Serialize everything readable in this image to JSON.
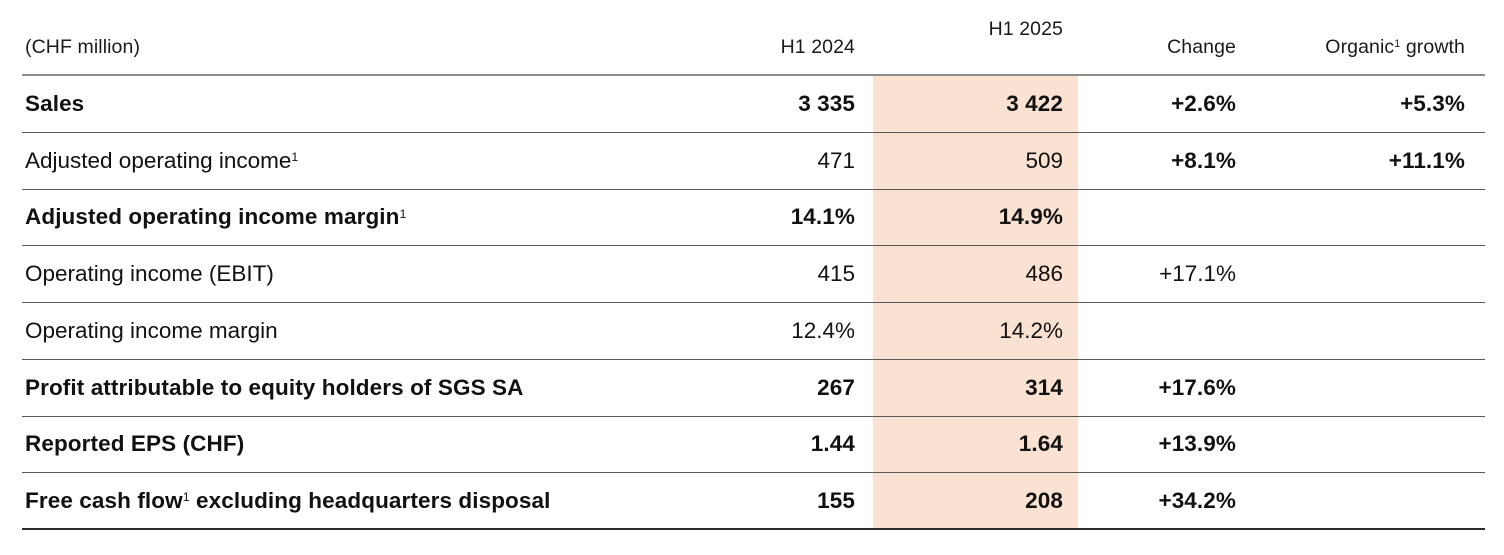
{
  "table": {
    "unit_label": "(CHF million)",
    "highlight_color": "#f9e2d1",
    "header": {
      "col_2024": "H1 2024",
      "col_2025": "H1 2025",
      "col_change": "Change",
      "col_organic_pre": "Organic",
      "col_organic_sup": "1",
      "col_organic_post": " growth"
    },
    "rows": [
      {
        "label_pre": "Sales",
        "label_sup": "",
        "label_post": "",
        "bold": true,
        "v2024": "3 335",
        "v2025": "3 422",
        "change": "+2.6%",
        "organic": "+5.3%",
        "change_bold": true
      },
      {
        "label_pre": "Adjusted operating income",
        "label_sup": "1",
        "label_post": "",
        "bold": false,
        "v2024": "471",
        "v2025": "509",
        "change": "+8.1%",
        "organic": "+11.1%",
        "change_bold": true
      },
      {
        "label_pre": "Adjusted operating income margin",
        "label_sup": "1",
        "label_post": "",
        "bold": true,
        "v2024": "14.1%",
        "v2025": "14.9%",
        "change": "",
        "organic": "",
        "change_bold": false
      },
      {
        "label_pre": "Operating income (EBIT)",
        "label_sup": "",
        "label_post": "",
        "bold": false,
        "v2024": "415",
        "v2025": "486",
        "change": "+17.1%",
        "organic": "",
        "change_bold": false
      },
      {
        "label_pre": "Operating income margin",
        "label_sup": "",
        "label_post": "",
        "bold": false,
        "v2024": "12.4%",
        "v2025": "14.2%",
        "change": "",
        "organic": "",
        "change_bold": false
      },
      {
        "label_pre": "Profit attributable to equity holders of SGS SA",
        "label_sup": "",
        "label_post": "",
        "bold": true,
        "v2024": "267",
        "v2025": "314",
        "change": "+17.6%",
        "organic": "",
        "change_bold": true
      },
      {
        "label_pre": "Reported EPS (CHF)",
        "label_sup": "",
        "label_post": "",
        "bold": true,
        "v2024": "1.44",
        "v2025": "1.64",
        "change": "+13.9%",
        "organic": "",
        "change_bold": true
      },
      {
        "label_pre": "Free cash flow",
        "label_sup": "1",
        "label_post": " excluding headquarters disposal",
        "bold": true,
        "v2024": "155",
        "v2025": "208",
        "change": "+34.2%",
        "organic": "",
        "change_bold": true
      }
    ]
  }
}
